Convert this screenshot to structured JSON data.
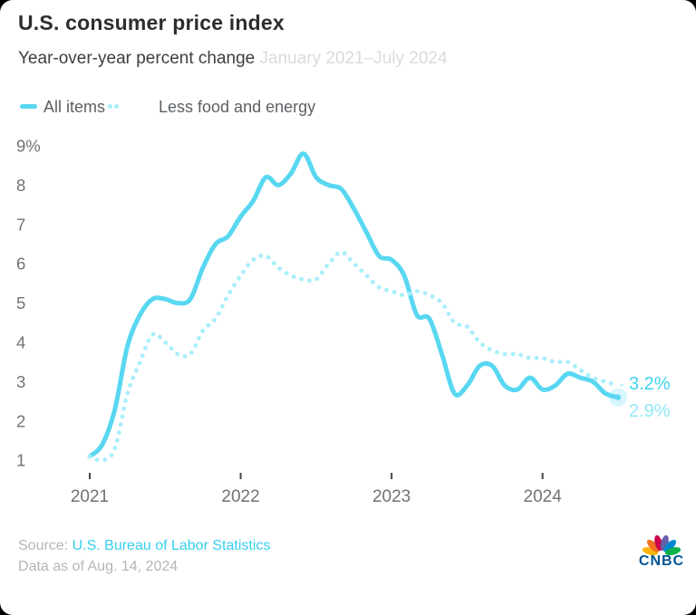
{
  "header": {
    "title": "U.S. consumer price index",
    "subtitle": "Year-over-year percent change",
    "date_range": "January 2021–July 2024"
  },
  "legend": {
    "items": [
      {
        "label": "All items",
        "style": "solid",
        "color": "#58d7f1"
      },
      {
        "label": "Less food and energy",
        "style": "dotted",
        "color": "#a9eefa"
      }
    ]
  },
  "chart_data": {
    "type": "line",
    "title": "U.S. consumer price index",
    "subtitle": "Year-over-year percent change",
    "date_range": "January 2021–July 2024",
    "unit": "percent",
    "grid": false,
    "legend_position": "top-left",
    "months": [
      "Jan 2021",
      "Feb 2021",
      "Mar 2021",
      "Apr 2021",
      "May 2021",
      "Jun 2021",
      "Jul 2021",
      "Aug 2021",
      "Sep 2021",
      "Oct 2021",
      "Nov 2021",
      "Dec 2021",
      "Jan 2022",
      "Feb 2022",
      "Mar 2022",
      "Apr 2022",
      "May 2022",
      "Jun 2022",
      "Jul 2022",
      "Aug 2022",
      "Sep 2022",
      "Oct 2022",
      "Nov 2022",
      "Dec 2022",
      "Jan 2023",
      "Feb 2023",
      "Mar 2023",
      "Apr 2023",
      "May 2023",
      "Jun 2023",
      "Jul 2023",
      "Aug 2023",
      "Sep 2023",
      "Oct 2023",
      "Nov 2023",
      "Dec 2023",
      "Jan 2024",
      "Feb 2024",
      "Mar 2024",
      "Apr 2024",
      "May 2024",
      "Jun 2024",
      "Jul 2024"
    ],
    "series": [
      {
        "name": "All items",
        "style": "solid",
        "color": "#58d7f1",
        "end_label": "2.9%",
        "end_label_color": "#92e7f7",
        "values": [
          1.4,
          1.7,
          2.6,
          4.2,
          5.0,
          5.4,
          5.4,
          5.3,
          5.4,
          6.2,
          6.8,
          7.0,
          7.5,
          7.9,
          8.5,
          8.3,
          8.6,
          9.1,
          8.5,
          8.3,
          8.2,
          7.7,
          7.1,
          6.5,
          6.4,
          6.0,
          5.0,
          4.9,
          4.0,
          3.0,
          3.2,
          3.7,
          3.7,
          3.2,
          3.1,
          3.4,
          3.1,
          3.2,
          3.5,
          3.4,
          3.3,
          3.0,
          2.9
        ]
      },
      {
        "name": "Less food and energy",
        "style": "dotted",
        "color": "#a9eefa",
        "end_label": "3.2%",
        "end_label_color": "#3fd4ee",
        "values": [
          1.4,
          1.3,
          1.6,
          3.0,
          3.8,
          4.5,
          4.3,
          4.0,
          4.0,
          4.6,
          4.9,
          5.5,
          6.0,
          6.4,
          6.5,
          6.2,
          6.0,
          5.9,
          5.9,
          6.3,
          6.6,
          6.3,
          6.0,
          5.7,
          5.6,
          5.5,
          5.6,
          5.5,
          5.3,
          4.8,
          4.7,
          4.3,
          4.1,
          4.0,
          4.0,
          3.9,
          3.9,
          3.8,
          3.8,
          3.6,
          3.4,
          3.3,
          3.2
        ]
      }
    ],
    "y_axis": {
      "min": 1,
      "max": 9,
      "tick_values": [
        9,
        8,
        7,
        6,
        5,
        4,
        3,
        2,
        1
      ],
      "tick_labels": [
        "9%",
        "8",
        "7",
        "6",
        "5",
        "4",
        "3",
        "2",
        "1"
      ]
    },
    "x_axis": {
      "tick_indices": [
        0,
        12,
        24,
        36
      ],
      "tick_labels": [
        "2021",
        "2022",
        "2023",
        "2024"
      ]
    }
  },
  "footer": {
    "source_label": "Source:",
    "source_link": "U.S. Bureau of Labor Statistics",
    "data_as_of": "Data as of Aug. 14, 2024",
    "logo_text": "CNBC",
    "logo_text_color": "#005594",
    "peacock_colors": [
      "#FCB711",
      "#F37021",
      "#CC004C",
      "#6460AA",
      "#0089D0",
      "#0DB14B"
    ]
  }
}
